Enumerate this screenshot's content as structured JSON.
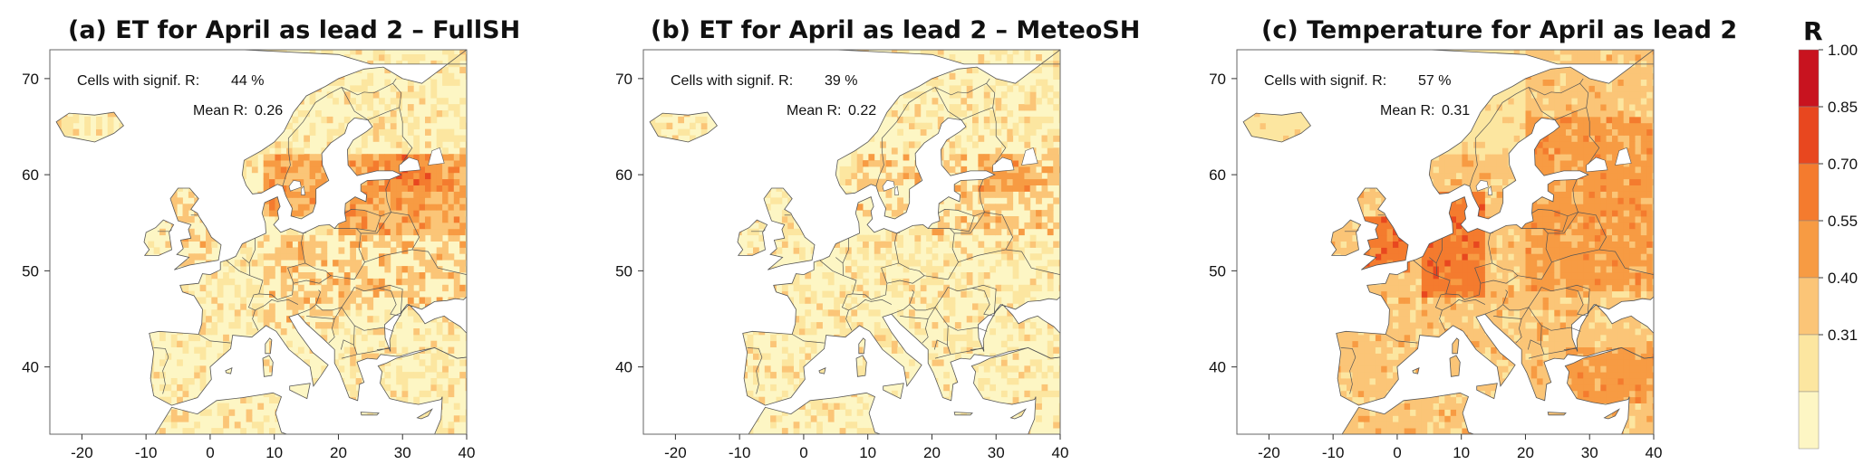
{
  "panels": [
    {
      "title": "(a) ET for April as lead 2 – FullSH",
      "signif_label": "Cells with signif. R:",
      "signif_value": "44 %",
      "mean_label": "Mean R:",
      "mean_value": "0.26",
      "intensity": 0
    },
    {
      "title": "(b) ET for April as lead 2 – MeteoSH",
      "signif_label": "Cells with signif. R:",
      "signif_value": "39 %",
      "mean_label": "Mean R:",
      "mean_value": "0.22",
      "intensity": 1
    },
    {
      "title": "(c) Temperature for April as lead 2",
      "signif_label": "Cells with signif. R:",
      "signif_value": "57 %",
      "mean_label": "Mean R:",
      "mean_value": "0.31",
      "intensity": 2
    }
  ],
  "map_extent": {
    "lon": [
      -25,
      40
    ],
    "lat": [
      33,
      73
    ]
  },
  "lon_ticks": [
    "-20",
    "-10",
    "0",
    "10",
    "20",
    "30",
    "40"
  ],
  "lon_tick_values": [
    -20,
    -10,
    0,
    10,
    20,
    30,
    40
  ],
  "lat_ticks": [
    "40",
    "50",
    "60",
    "70"
  ],
  "lat_tick_values": [
    40,
    50,
    60,
    70
  ],
  "colorbar": {
    "label": "R",
    "ticks": [
      "1.00",
      "0.85",
      "0.70",
      "0.55",
      "0.40",
      "0.31"
    ],
    "colors": [
      "#c8131f",
      "#e8471f",
      "#f47b2e",
      "#f79b43",
      "#fbc577",
      "#fce6a0",
      "#fdf6c4"
    ]
  },
  "colors": {
    "ocean": "#ffffff",
    "border": "#555555"
  }
}
